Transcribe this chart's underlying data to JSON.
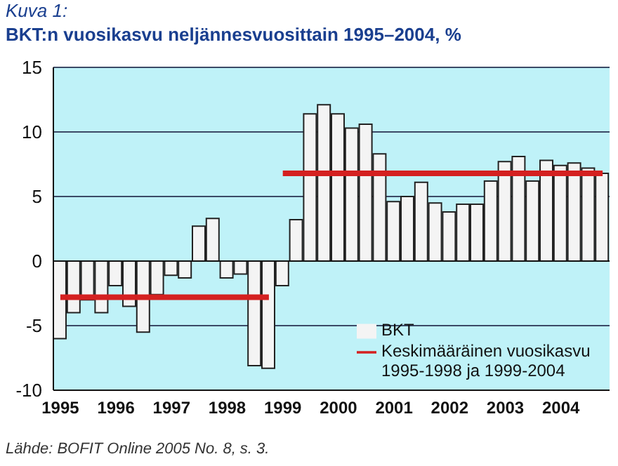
{
  "chart_data": {
    "type": "bar",
    "subtitle": "Kuva 1:",
    "title": "BKT:n vuosikasvu neljännesvuosittain 1995–2004, %",
    "categories": [
      "1995",
      null,
      null,
      null,
      "1996",
      null,
      null,
      null,
      "1997",
      null,
      null,
      null,
      "1998",
      null,
      null,
      null,
      "1999",
      null,
      null,
      null,
      "2000",
      null,
      null,
      null,
      "2001",
      null,
      null,
      null,
      "2002",
      null,
      null,
      null,
      "2003",
      null,
      null,
      null,
      "2004",
      null,
      null,
      null
    ],
    "series": [
      {
        "name": "BKT",
        "color": "#f4f4f4",
        "values": [
          -6.0,
          -4.0,
          -3.0,
          -4.0,
          -1.9,
          -3.5,
          -5.5,
          -2.6,
          -1.1,
          -1.3,
          2.7,
          3.3,
          -1.3,
          -1.0,
          -8.1,
          -8.3,
          -1.9,
          3.2,
          11.4,
          12.1,
          11.4,
          10.3,
          10.6,
          8.3,
          4.6,
          5.0,
          6.1,
          4.5,
          3.8,
          4.4,
          4.4,
          6.2,
          7.7,
          8.1,
          6.2,
          7.8,
          7.4,
          7.6,
          7.2,
          6.8
        ]
      },
      {
        "type": "line",
        "name": "Keskimääräinen vuosikasvu 1995-1998 ja 1999-2004",
        "color": "#d42020",
        "values": [
          -2.8,
          -2.8,
          -2.8,
          -2.8,
          -2.8,
          -2.8,
          -2.8,
          -2.8,
          -2.8,
          -2.8,
          -2.8,
          -2.8,
          -2.8,
          -2.8,
          -2.8,
          -2.8,
          null,
          null,
          null,
          null,
          null,
          null,
          null,
          null,
          null,
          null,
          null,
          null,
          null,
          null,
          null,
          null,
          null,
          null,
          null,
          null,
          null,
          null,
          null,
          null
        ]
      },
      {
        "type": "line",
        "color": "#d42020",
        "values": [
          null,
          null,
          null,
          null,
          null,
          null,
          null,
          null,
          null,
          null,
          null,
          null,
          null,
          null,
          null,
          null,
          6.8,
          6.8,
          6.8,
          6.8,
          6.8,
          6.8,
          6.8,
          6.8,
          6.8,
          6.8,
          6.8,
          6.8,
          6.8,
          6.8,
          6.8,
          6.8,
          6.8,
          6.8,
          6.8,
          6.8,
          6.8,
          6.8,
          6.8,
          6.8
        ]
      }
    ],
    "ylim": [
      -10,
      15
    ],
    "yticks": [
      -10,
      -5,
      0,
      5,
      10,
      15
    ],
    "grid": "y",
    "legend": "bottom right",
    "marker": "none",
    "annotations": [
      "Lähde: BOFIT Online 2005 No. 8, s. 3."
    ]
  }
}
